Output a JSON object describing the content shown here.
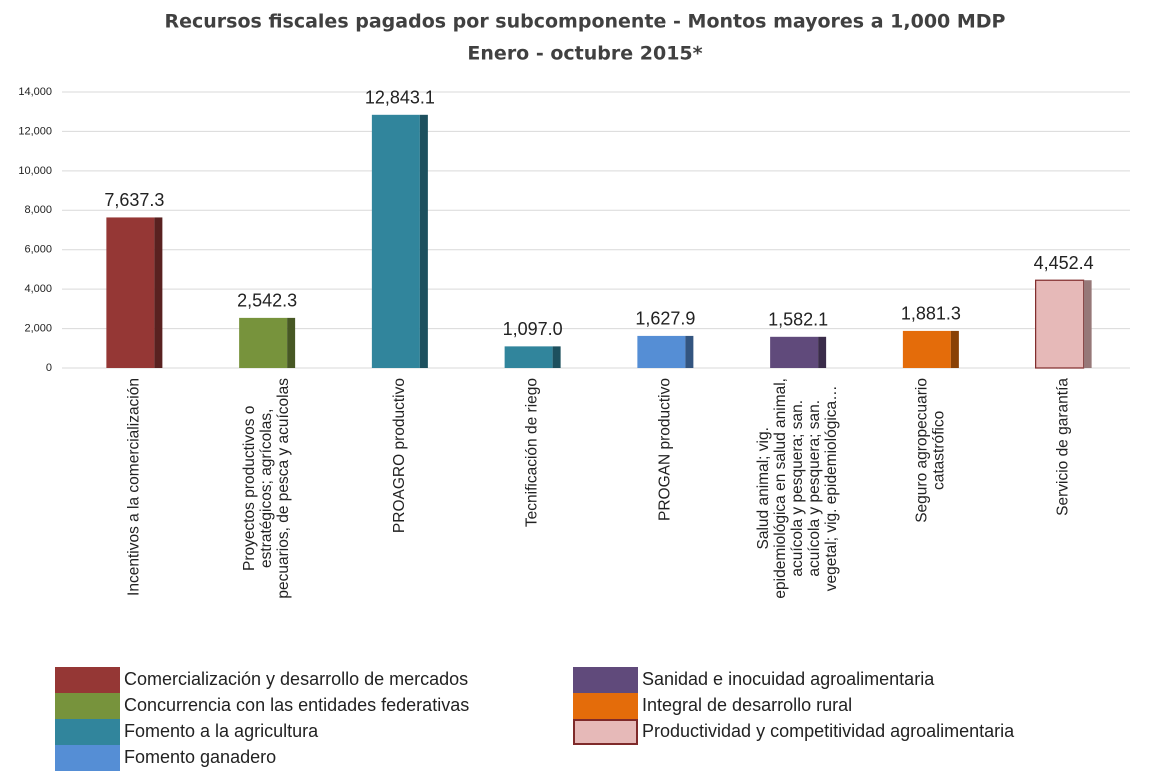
{
  "chart_data": {
    "type": "bar",
    "title": "Recursos fiscales pagados por subcomponente - Montos mayores a 1,000 MDP",
    "subtitle": "Enero - octubre 2015*",
    "categories": [
      [
        "Incentivos a la comercialización"
      ],
      [
        "Proyectos productivos o",
        "estratégicos; agrícolas,",
        "pecuarios, de pesca y acuícolas"
      ],
      [
        "PROAGRO productivo"
      ],
      [
        "Tecnificación de riego"
      ],
      [
        "PROGAN productivo"
      ],
      [
        "Salud animal; vig.",
        "epidemiológica en salud animal,",
        "acuícola y pesquera; san.",
        "acuícola y pesquera;  san.",
        "vegetal; vig. epidemiológica…"
      ],
      [
        "Seguro agropecuario",
        "catastrófico"
      ],
      [
        "Servicio de garantía"
      ]
    ],
    "series": [
      {
        "name": "Comercialización y desarrollo de mercados",
        "color": "#953735",
        "values": [
          7637.3,
          null,
          null,
          null,
          null,
          null,
          null,
          null
        ],
        "value_labels": [
          "7,637.3",
          null,
          null,
          null,
          null,
          null,
          null,
          null
        ]
      },
      {
        "name": "Concurrencia con las entidades federativas",
        "color": "#77933c",
        "values": [
          null,
          2542.3,
          null,
          null,
          null,
          null,
          null,
          null
        ],
        "value_labels": [
          null,
          "2,542.3",
          null,
          null,
          null,
          null,
          null,
          null
        ]
      },
      {
        "name": "Fomento a la agricultura",
        "color": "#31859c",
        "values": [
          null,
          null,
          12843.1,
          1097.0,
          null,
          null,
          null,
          null
        ],
        "value_labels": [
          null,
          null,
          "12,843.1",
          "1,097.0",
          null,
          null,
          null,
          null
        ]
      },
      {
        "name": "Fomento ganadero",
        "color": "#558ed5",
        "values": [
          null,
          null,
          null,
          null,
          1627.9,
          null,
          null,
          null
        ],
        "value_labels": [
          null,
          null,
          null,
          null,
          "1,627.9",
          null,
          null,
          null
        ]
      },
      {
        "name": "Sanidad e inocuidad agroalimentaria",
        "color": "#604a7b",
        "values": [
          null,
          null,
          null,
          null,
          null,
          1582.1,
          null,
          null
        ],
        "value_labels": [
          null,
          null,
          null,
          null,
          null,
          "1,582.1",
          null,
          null
        ]
      },
      {
        "name": "Integral de desarrollo rural",
        "color": "#e46c0a",
        "values": [
          null,
          null,
          null,
          null,
          null,
          null,
          1881.3,
          null
        ],
        "value_labels": [
          null,
          null,
          null,
          null,
          null,
          null,
          "1,881.3",
          null
        ]
      },
      {
        "name": "Productividad y competitividad agroalimentaria",
        "color": "#e6b9b8",
        "edgecolor": "#7f2a2a",
        "values": [
          null,
          null,
          null,
          null,
          null,
          null,
          null,
          4452.4
        ],
        "value_labels": [
          null,
          null,
          null,
          null,
          null,
          null,
          null,
          "4,452.4"
        ]
      }
    ],
    "ylim": [
      0,
      14000
    ],
    "yticks": [
      0,
      {
        "value": 2000,
        "label": "2,000"
      },
      {
        "value": 4000,
        "label": "4,000"
      },
      {
        "value": 6000,
        "label": "6,000"
      },
      {
        "value": 8000,
        "label": "8,000"
      },
      {
        "value": 10000,
        "label": "10,000"
      },
      {
        "value": 12000,
        "label": "12,000"
      },
      {
        "value": 14000,
        "label": "14,000"
      }
    ],
    "grid": true
  }
}
